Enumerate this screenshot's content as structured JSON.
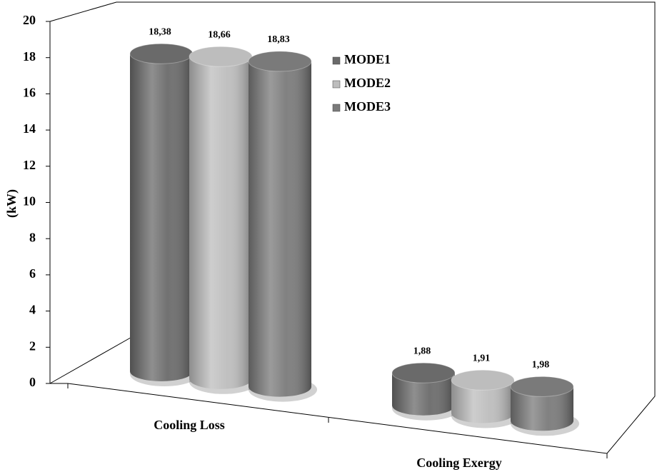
{
  "chart_data": {
    "type": "bar3d",
    "y_label": "(kW)",
    "categories": [
      "Cooling Loss",
      "Cooling Exergy"
    ],
    "series": [
      {
        "name": "MODE1",
        "color": "#6a6a6a",
        "values": [
          18.38,
          1.88
        ],
        "value_labels": [
          "18,38",
          "1,88"
        ]
      },
      {
        "name": "MODE2",
        "color": "#bdbdbd",
        "values": [
          18.66,
          1.91
        ],
        "value_labels": [
          "18,66",
          "1,91"
        ]
      },
      {
        "name": "MODE3",
        "color": "#7a7a7a",
        "values": [
          18.83,
          1.98
        ],
        "value_labels": [
          "18,83",
          "1,98"
        ]
      }
    ],
    "ylim": [
      0,
      20
    ],
    "yticks": [
      0,
      2,
      4,
      6,
      8,
      10,
      12,
      14,
      16,
      18,
      20
    ],
    "legend": "top-right"
  }
}
